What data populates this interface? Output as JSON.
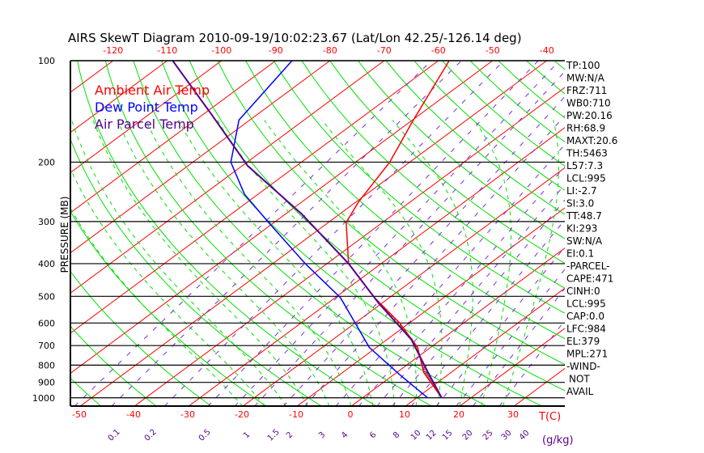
{
  "chart_data": {
    "type": "line",
    "title": "AIRS SkewT Diagram 2010-09-19/10:02:23.67 (Lat/Lon 42.25/-126.14 deg)",
    "ylabel": "PRESSURE (MB)",
    "xlabel": "T(C)",
    "mixing_ratio_unit": "(g/kg)",
    "pressure_ticks": [
      100,
      200,
      300,
      400,
      500,
      600,
      700,
      800,
      900,
      1000
    ],
    "top_temp_ticks": [
      -120,
      -110,
      -100,
      -90,
      -80,
      -70,
      -60,
      -50,
      -40
    ],
    "bottom_temp_ticks": [
      -50,
      -40,
      -30,
      -20,
      -10,
      0,
      10,
      20,
      30
    ],
    "mixing_ratio_ticks": [
      "0.1",
      "0.2",
      "0.5",
      "1",
      "1.5",
      "2",
      "3",
      "4",
      "6",
      "8",
      "10",
      "12",
      "15",
      "20",
      "25",
      "30",
      "40"
    ],
    "legend": [
      {
        "label": "Ambient Air Temp",
        "color": "#ff0000"
      },
      {
        "label": "Dew Point Temp",
        "color": "#0000ff"
      },
      {
        "label": "Air Parcel Temp",
        "color": "#55008c"
      }
    ],
    "series": [
      {
        "name": "Ambient Air Temp",
        "color": "#ff0000",
        "p": [
          100,
          151,
          200,
          263,
          302,
          400,
          505,
          600,
          709,
          840,
          1000
        ],
        "T": [
          -58,
          -49.7,
          -43.7,
          -39.5,
          -36.7,
          -26,
          -12.7,
          -1.8,
          7.6,
          14.9,
          24.6
        ]
      },
      {
        "name": "Dew Point Temp",
        "color": "#0000ff",
        "p": [
          100,
          150,
          200,
          249,
          302,
          400,
          505,
          600,
          709,
          859,
          1000
        ],
        "T": [
          -87,
          -82,
          -73,
          -62.5,
          -51,
          -34,
          -19,
          -10,
          -1.3,
          11.5,
          22
        ]
      },
      {
        "name": "Air Parcel Temp",
        "color": "#55008c",
        "p": [
          100,
          143,
          205,
          285,
          400,
          524,
          672,
          840,
          1000
        ],
        "T": [
          -109,
          -89,
          -69,
          -47,
          -26,
          -10.6,
          4.5,
          15.7,
          24.6
        ]
      }
    ],
    "indices": [
      "TP:100",
      "MW:N/A",
      "FRZ:711",
      "WB0:710",
      "PW:20.16",
      "RH:68.9",
      "MAXT:20.6",
      "TH:5463",
      "L57:7.3",
      "LCL:995",
      "LI:-2.7",
      "SI:3.0",
      "TT:48.7",
      "KI:293",
      "SW:N/A",
      "EI:0.1",
      "-PARCEL-",
      "CAPE:471",
      "CINH:0",
      "LCL:995",
      "CAP:0.0",
      "LFC:984",
      "EL:379",
      "MPL:271",
      "-WIND-",
      "NOT",
      "AVAIL"
    ]
  }
}
